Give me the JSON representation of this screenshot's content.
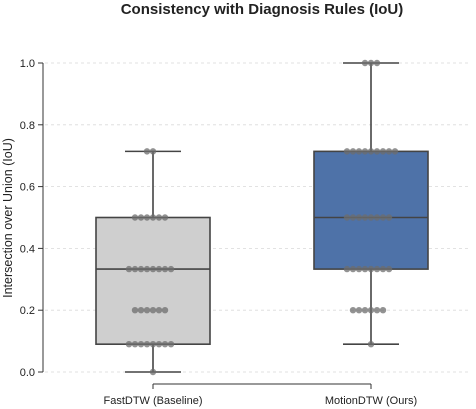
{
  "chart_data": {
    "type": "box",
    "title": "Consistency with Diagnosis Rules (IoU)",
    "xlabel": "",
    "ylabel": "Intersection over Union (IoU)",
    "ylim": [
      0,
      1.0
    ],
    "yticks": [
      "0.0",
      "0.2",
      "0.4",
      "0.6",
      "0.8",
      "1.0"
    ],
    "grid": "horizontal dashed",
    "categories": [
      "FastDTW (Baseline)",
      "MotionDTW (Ours)"
    ],
    "series": [
      {
        "category": "FastDTW (Baseline)",
        "color": "#cfcfcf",
        "box": {
          "min": 0.0,
          "q1": 0.09,
          "median": 0.333,
          "q3": 0.5,
          "max": 0.714
        },
        "points": [
          0.0,
          0.09,
          0.09,
          0.09,
          0.09,
          0.09,
          0.09,
          0.09,
          0.09,
          0.2,
          0.2,
          0.2,
          0.2,
          0.2,
          0.2,
          0.333,
          0.333,
          0.333,
          0.333,
          0.333,
          0.333,
          0.333,
          0.333,
          0.5,
          0.5,
          0.5,
          0.5,
          0.5,
          0.5,
          0.714,
          0.714
        ]
      },
      {
        "category": "MotionDTW (Ours)",
        "color": "#4e72a8",
        "box": {
          "min": 0.09,
          "q1": 0.333,
          "median": 0.5,
          "q3": 0.714,
          "max": 1.0
        },
        "points": [
          0.09,
          0.2,
          0.2,
          0.2,
          0.2,
          0.2,
          0.2,
          0.333,
          0.333,
          0.333,
          0.333,
          0.333,
          0.333,
          0.333,
          0.333,
          0.5,
          0.5,
          0.5,
          0.5,
          0.5,
          0.5,
          0.5,
          0.5,
          0.714,
          0.714,
          0.714,
          0.714,
          0.714,
          0.714,
          0.714,
          0.714,
          0.714,
          1.0,
          1.0,
          1.0
        ]
      }
    ]
  }
}
